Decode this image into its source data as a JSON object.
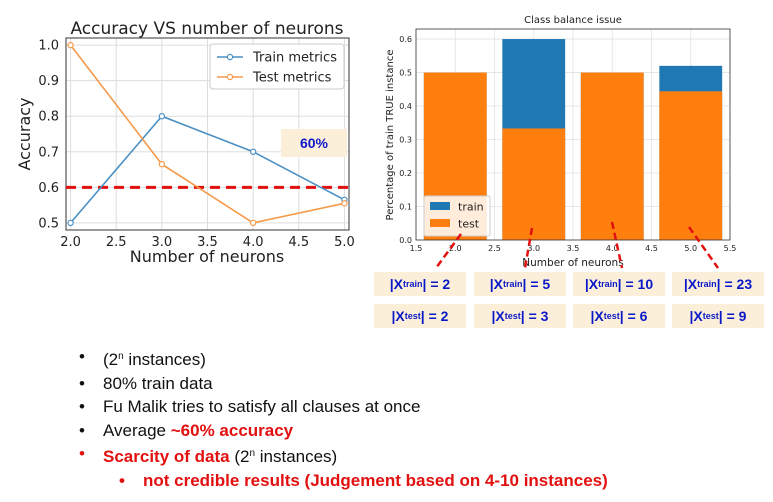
{
  "chart_data": [
    {
      "type": "line",
      "title": "Accuracy VS number of neurons",
      "xlabel": "Number of neurons",
      "ylabel": "Accuracy",
      "xlim": [
        1.95,
        5.05
      ],
      "ylim": [
        0.48,
        1.02
      ],
      "x_ticks": [
        "2.0",
        "2.5",
        "3.0",
        "3.5",
        "4.0",
        "4.5",
        "5.0"
      ],
      "y_ticks": [
        "0.5",
        "0.6",
        "0.7",
        "0.8",
        "0.9",
        "1.0"
      ],
      "x": [
        2,
        3,
        4,
        5
      ],
      "series": [
        {
          "name": "Train metrics",
          "values": [
            0.5,
            0.8,
            0.7,
            0.565
          ],
          "color": "#4a90c4"
        },
        {
          "name": "Test metrics",
          "values": [
            1.0,
            0.665,
            0.5,
            0.555
          ],
          "color": "#f59a4a"
        }
      ],
      "reference_line": {
        "value": 0.6,
        "color": "#e31010",
        "label": "60%"
      },
      "grid": true,
      "legend": "top-right"
    },
    {
      "type": "bar",
      "title": "Class balance issue",
      "xlabel": "Number of neurons",
      "ylabel": "Percentage of train TRUE instance",
      "xlim": [
        1.5,
        5.5
      ],
      "ylim": [
        0,
        0.63
      ],
      "x_ticks": [
        "1.5",
        "2.0",
        "2.5",
        "3.0",
        "3.5",
        "4.0",
        "4.5",
        "5.0",
        "5.5"
      ],
      "y_ticks": [
        "0.0",
        "0.1",
        "0.2",
        "0.3",
        "0.4",
        "0.5",
        "0.6"
      ],
      "categories": [
        2,
        3,
        4,
        5
      ],
      "series": [
        {
          "name": "train",
          "values": [
            0.5,
            0.6,
            0.5,
            0.52
          ],
          "color": "#1f77b4"
        },
        {
          "name": "test",
          "values": [
            0.5,
            0.333,
            0.5,
            0.444
          ],
          "color": "#ff7f0e"
        }
      ],
      "grid": true,
      "legend": "bottom-left"
    }
  ],
  "count_labels": {
    "train": [
      {
        "pre": "|X",
        "sub": "train",
        "post": "| = 2"
      },
      {
        "pre": "|X",
        "sub": "train",
        "post": "| = 5"
      },
      {
        "pre": "|X",
        "sub": "train",
        "post": "| = 10"
      },
      {
        "pre": "|X",
        "sub": "train",
        "post": "| = 23"
      }
    ],
    "test": [
      {
        "pre": "|X",
        "sub": "test",
        "post": "| = 2"
      },
      {
        "pre": "|X",
        "sub": "test",
        "post": "| = 3"
      },
      {
        "pre": "|X",
        "sub": "test",
        "post": "| = 6"
      },
      {
        "pre": "|X",
        "sub": "test",
        "post": "| = 9"
      }
    ]
  },
  "bullets": {
    "b1": {
      "pre": "(2",
      "sup": "n",
      "post": " instances)"
    },
    "b2": "80% train data",
    "b3": "Fu Malik tries to satisfy all clauses at once",
    "b4": {
      "pre": "Average ",
      "red": "~60% accuracy"
    },
    "b5": {
      "red": "Scarcity of data",
      "pre": " (2",
      "sup": "n",
      "post": " instances)"
    },
    "b6": "not credible results (Judgement based on 4-10 instances)"
  }
}
